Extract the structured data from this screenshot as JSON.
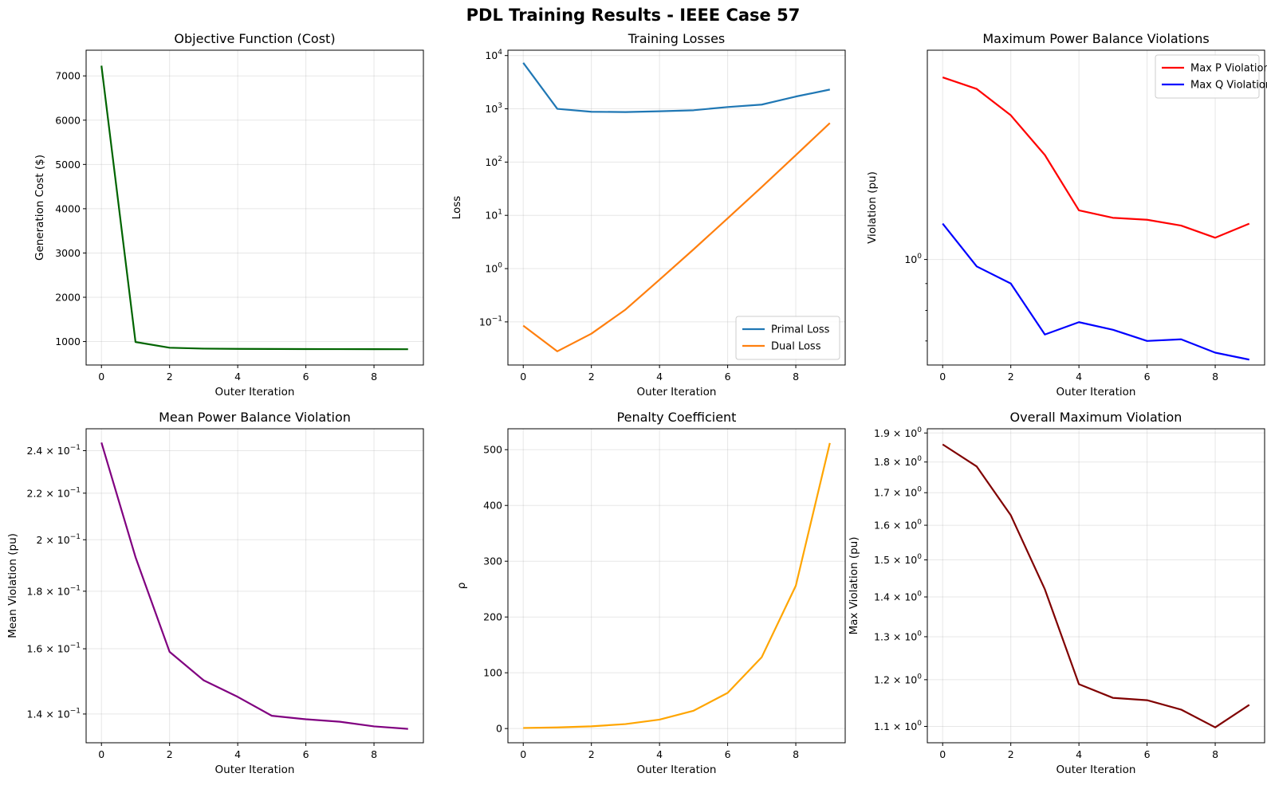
{
  "figure": {
    "title": "PDL Training Results - IEEE Case 57"
  },
  "chart_data": [
    {
      "id": "cost",
      "type": "line",
      "title": "Objective Function (Cost)",
      "xlabel": "Outer Iteration",
      "ylabel": "Generation Cost ($)",
      "xlim": [
        -0.45,
        9.45
      ],
      "ylim": [
        470,
        7580
      ],
      "yscale": "linear",
      "xticks": [
        0,
        2,
        4,
        6,
        8
      ],
      "yticks": [
        1000,
        2000,
        3000,
        4000,
        5000,
        6000,
        7000
      ],
      "grid": true,
      "legend": null,
      "series": [
        {
          "name": "",
          "color": "#006400",
          "x": [
            0,
            1,
            2,
            3,
            4,
            5,
            6,
            7,
            8,
            9
          ],
          "y": [
            7230,
            990,
            860,
            840,
            835,
            832,
            830,
            829,
            828,
            827
          ]
        }
      ]
    },
    {
      "id": "losses",
      "type": "line",
      "title": "Training Losses",
      "xlabel": "Outer Iteration",
      "ylabel": "Loss",
      "xlim": [
        -0.45,
        9.45
      ],
      "ylim": [
        0.0155,
        12600
      ],
      "yscale": "log",
      "xticks": [
        0,
        2,
        4,
        6,
        8
      ],
      "yticks": [
        0.1,
        1,
        10,
        100,
        1000,
        10000
      ],
      "ytick_labels": [
        [
          "10",
          "−1"
        ],
        [
          "10",
          "0"
        ],
        [
          "10",
          "1"
        ],
        [
          "10",
          "2"
        ],
        [
          "10",
          "3"
        ],
        [
          "10",
          "4"
        ]
      ],
      "grid": true,
      "legend": "lower-right",
      "series": [
        {
          "name": "Primal Loss",
          "color": "#1f77b4",
          "x": [
            0,
            1,
            2,
            3,
            4,
            5,
            6,
            7,
            8,
            9
          ],
          "y": [
            7300,
            1000,
            880,
            870,
            900,
            940,
            1080,
            1200,
            1700,
            2300
          ]
        },
        {
          "name": "Dual Loss",
          "color": "#ff7f0e",
          "x": [
            0,
            1,
            2,
            3,
            4,
            5,
            6,
            7,
            8,
            9
          ],
          "y": [
            0.085,
            0.028,
            0.06,
            0.17,
            0.62,
            2.3,
            8.8,
            34,
            135,
            540
          ]
        }
      ]
    },
    {
      "id": "max-violations",
      "type": "line",
      "title": "Maximum Power Balance Violations",
      "xlabel": "Outer Iteration",
      "ylabel": "Violation (pu)",
      "xlim": [
        -0.45,
        9.45
      ],
      "ylim": [
        0.63,
        2.5
      ],
      "yscale": "log",
      "xticks": [
        0,
        2,
        4,
        6,
        8
      ],
      "yticks": [
        1
      ],
      "ytick_labels": [
        [
          "10",
          "0"
        ]
      ],
      "minor_yticks": [
        0.7,
        0.8,
        0.9
      ],
      "grid": true,
      "legend": "top-right",
      "series": [
        {
          "name": "Max P Violation",
          "color": "#ff0000",
          "x": [
            0,
            1,
            2,
            3,
            4,
            5,
            6,
            7,
            8,
            9
          ],
          "y": [
            2.22,
            2.11,
            1.88,
            1.58,
            1.24,
            1.2,
            1.19,
            1.16,
            1.1,
            1.17
          ]
        },
        {
          "name": "Max Q Violation",
          "color": "#0000ff",
          "x": [
            0,
            1,
            2,
            3,
            4,
            5,
            6,
            7,
            8,
            9
          ],
          "y": [
            1.17,
            0.97,
            0.9,
            0.72,
            0.76,
            0.735,
            0.7,
            0.705,
            0.665,
            0.645
          ]
        }
      ]
    },
    {
      "id": "mean-violation",
      "type": "line",
      "title": "Mean Power Balance Violation",
      "xlabel": "Outer Iteration",
      "ylabel": "Mean Violation (pu)",
      "xlim": [
        -0.45,
        9.45
      ],
      "ylim": [
        0.132,
        0.251
      ],
      "yscale": "log",
      "xticks": [
        0,
        2,
        4,
        6,
        8
      ],
      "yticks": [
        0.14,
        0.16,
        0.18,
        0.2,
        0.22,
        0.24
      ],
      "ytick_labels": [
        [
          "1.4 × 10",
          "−1"
        ],
        [
          "1.6 × 10",
          "−1"
        ],
        [
          "1.8 × 10",
          "−1"
        ],
        [
          "2 × 10",
          "−1"
        ],
        [
          "2.2 × 10",
          "−1"
        ],
        [
          "2.4 × 10",
          "−1"
        ]
      ],
      "grid": true,
      "legend": null,
      "series": [
        {
          "name": "",
          "color": "#800080",
          "x": [
            0,
            1,
            2,
            3,
            4,
            5,
            6,
            7,
            8,
            9
          ],
          "y": [
            0.244,
            0.193,
            0.159,
            0.15,
            0.145,
            0.1395,
            0.1385,
            0.1378,
            0.1365,
            0.1358
          ]
        }
      ]
    },
    {
      "id": "penalty",
      "type": "line",
      "title": "Penalty Coefficient",
      "xlabel": "Outer Iteration",
      "ylabel": "ρ",
      "xlim": [
        -0.45,
        9.45
      ],
      "ylim": [
        -25.5,
        537.5
      ],
      "yscale": "linear",
      "xticks": [
        0,
        2,
        4,
        6,
        8
      ],
      "yticks": [
        0,
        100,
        200,
        300,
        400,
        500
      ],
      "grid": true,
      "legend": null,
      "series": [
        {
          "name": "",
          "color": "#ffa500",
          "x": [
            0,
            1,
            2,
            3,
            4,
            5,
            6,
            7,
            8,
            9
          ],
          "y": [
            1,
            2,
            4,
            8,
            16,
            32,
            64,
            128,
            256,
            512
          ]
        }
      ]
    },
    {
      "id": "overall-max",
      "type": "line",
      "title": "Overall Maximum Violation",
      "xlabel": "Outer Iteration",
      "ylabel": "Max Violation (pu)",
      "xlim": [
        -0.45,
        9.45
      ],
      "ylim": [
        1.067,
        1.915
      ],
      "yscale": "log",
      "xticks": [
        0,
        2,
        4,
        6,
        8
      ],
      "yticks": [
        1.1,
        1.2,
        1.3,
        1.4,
        1.5,
        1.6,
        1.7,
        1.8,
        1.9
      ],
      "ytick_labels": [
        [
          "1.1 × 10",
          "0"
        ],
        [
          "1.2 × 10",
          "0"
        ],
        [
          "1.3 × 10",
          "0"
        ],
        [
          "1.4 × 10",
          "0"
        ],
        [
          "1.5 × 10",
          "0"
        ],
        [
          "1.6 × 10",
          "0"
        ],
        [
          "1.7 × 10",
          "0"
        ],
        [
          "1.8 × 10",
          "0"
        ],
        [
          "1.9 × 10",
          "0"
        ]
      ],
      "grid": true,
      "legend": null,
      "series": [
        {
          "name": "",
          "color": "#800000",
          "x": [
            0,
            1,
            2,
            3,
            4,
            5,
            6,
            7,
            8,
            9
          ],
          "y": [
            1.86,
            1.785,
            1.63,
            1.42,
            1.19,
            1.16,
            1.155,
            1.135,
            1.098,
            1.145
          ]
        }
      ]
    }
  ]
}
